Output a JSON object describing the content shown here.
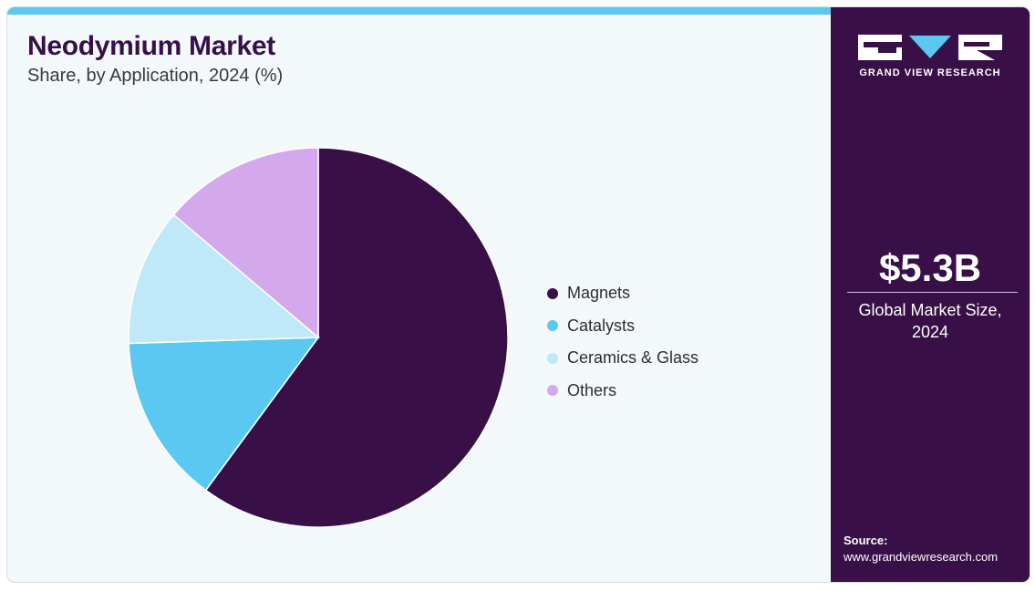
{
  "header": {
    "title": "Neodymium Market",
    "subtitle": "Share, by Application, 2024 (%)"
  },
  "chart_data": {
    "type": "pie",
    "title": "Neodymium Market",
    "subtitle": "Share, by Application, 2024 (%)",
    "categories": [
      "Magnets",
      "Catalysts",
      "Ceramics & Glass",
      "Others"
    ],
    "values": [
      60.1,
      14.4,
      11.7,
      13.8
    ],
    "colors": [
      "#380f46",
      "#5bc8f2",
      "#bfe8f8",
      "#d3a8ec"
    ],
    "start_angle": "12 o'clock",
    "direction": "clockwise",
    "legend_position": "right"
  },
  "sidebar": {
    "brand_name": "GRAND VIEW RESEARCH",
    "market_value": "$5.3B",
    "market_label": "Global Market Size, 2024",
    "source_label": "Source:",
    "source_url": "www.grandviewresearch.com"
  }
}
